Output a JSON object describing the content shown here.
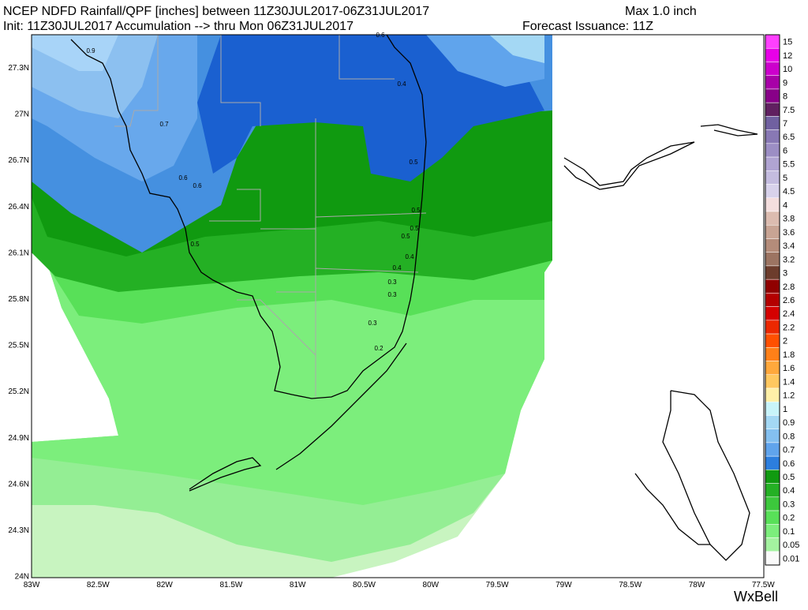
{
  "header": {
    "title": "NCEP NDFD Rainfall/QPF [inches] between 11Z30JUL2017-06Z31JUL2017",
    "max": "Max 1.0 inch",
    "subtitle": "Init: 11Z30JUL2017 Accumulation --> thru Mon 06Z31JUL2017",
    "issuance": "Forecast Issuance: 11Z"
  },
  "map": {
    "latitude_labels": [
      "27.3N",
      "27N",
      "26.7N",
      "26.4N",
      "26.1N",
      "25.8N",
      "25.5N",
      "25.2N",
      "24.9N",
      "24.6N",
      "24.3N",
      "24N"
    ],
    "longitude_labels": [
      "83W",
      "82.5W",
      "82W",
      "81.5W",
      "81W",
      "80.5W",
      "80W",
      "79.5W",
      "79W",
      "78.5W",
      "78W",
      "77.5W"
    ],
    "contour_labels": [
      "0.6",
      "0.9",
      "0.4",
      "0.7",
      "0.6",
      "0.6",
      "0.5",
      "0.5",
      "0.5",
      "0.5",
      "0.5",
      "0.4",
      "0.4",
      "0.3",
      "0.3",
      "0.3",
      "0.2"
    ]
  },
  "legend": {
    "levels": [
      15,
      12,
      10,
      9,
      8,
      7.5,
      7,
      6.5,
      6,
      5.5,
      5,
      4.5,
      4,
      3.8,
      3.6,
      3.4,
      3.2,
      3,
      2.8,
      2.6,
      2.4,
      2.2,
      2,
      1.8,
      1.6,
      1.4,
      1.2,
      1,
      0.9,
      0.8,
      0.7,
      0.6,
      0.5,
      0.4,
      0.3,
      0.2,
      0.1,
      0.05,
      0.01
    ],
    "colors": [
      "#ff40ff",
      "#e800e8",
      "#cc00cc",
      "#a800a8",
      "#880088",
      "#602060",
      "#7060a0",
      "#8878b4",
      "#9c8ec4",
      "#b0a4d2",
      "#c4bcdf",
      "#d8d2eb",
      "#f4dede",
      "#dcbcb0",
      "#c8a494",
      "#b48c7a",
      "#9c7462",
      "#6c3c2c",
      "#900000",
      "#b40000",
      "#d40000",
      "#ec2800",
      "#ff5000",
      "#ff8018",
      "#ffa83c",
      "#ffc860",
      "#fff0a8",
      "#c8f4fa",
      "#a4d8f4",
      "#84c0f0",
      "#60a4ec",
      "#2c7ede",
      "#109a10",
      "#24b024",
      "#3cc83c",
      "#58e058",
      "#7cee7c",
      "#a4f2a0",
      "#fafafa"
    ]
  },
  "logo": "WxBell"
}
